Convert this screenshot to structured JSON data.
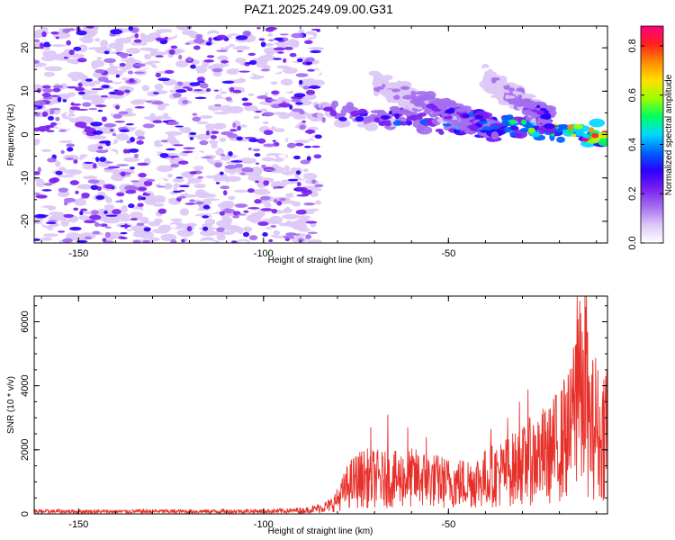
{
  "figure": {
    "title": "PAZ1.2025.249.09.00.G31"
  },
  "chart_data": [
    {
      "type": "heatmap",
      "title": "PAZ1.2025.249.09.00.G31",
      "xlabel": "Height of straight line (km)",
      "ylabel": "Frequency (Hz)",
      "xlim": [
        -162,
        -7
      ],
      "ylim": [
        -25,
        25
      ],
      "x_ticks": [
        -150,
        -100,
        -50
      ],
      "x_tick_labels": [
        "-150",
        "-100",
        "-50"
      ],
      "y_ticks": [
        20,
        10,
        0,
        -10,
        -20
      ],
      "y_tick_labels": [
        "20",
        "10",
        "0",
        "-10",
        "-20"
      ],
      "colorbar": {
        "label": "Normalized spectral amplitude",
        "range": [
          0.0,
          0.88
        ],
        "ticks": [
          0.0,
          0.2,
          0.4,
          0.6,
          0.8
        ],
        "tick_labels": [
          "0.0",
          "0.2",
          "0.4",
          "0.6",
          "0.8"
        ],
        "colors": [
          "#ffffff",
          "#dcc8f6",
          "#a46ef0",
          "#7a1ff0",
          "#2a00ff",
          "#0060ff",
          "#00d8ff",
          "#00ff60",
          "#9cff00",
          "#ffe000",
          "#ff8c00",
          "#ff2020",
          "#ff0080"
        ]
      },
      "features": {
        "noise_region_x": [
          -162,
          -85
        ],
        "noise_level": 0.14,
        "ridges": [
          {
            "x_start": -87,
            "x_end": -7,
            "f_start": 5,
            "f_end": 0,
            "peak_amplitude": 0.85
          },
          {
            "x_start": -70,
            "x_end": -37,
            "f_start": 12,
            "f_end": 1,
            "peak_amplitude": 0.45
          },
          {
            "x_start": -40,
            "x_end": -22,
            "f_start": 13,
            "f_end": 3,
            "peak_amplitude": 0.35
          }
        ]
      },
      "grid": false
    },
    {
      "type": "line",
      "xlabel": "Height of straight line (km)",
      "ylabel": "SNR (10 * v/v)",
      "xlim": [
        -162,
        -7
      ],
      "ylim": [
        0,
        6800
      ],
      "x_ticks": [
        -150,
        -100,
        -50
      ],
      "x_tick_labels": [
        "-150",
        "-100",
        "-50"
      ],
      "y_ticks": [
        0,
        2000,
        4000,
        6000
      ],
      "y_tick_labels": [
        "0",
        "2000",
        "4000",
        "6000"
      ],
      "line_color": "#e8302a",
      "series": [
        {
          "x": [
            -162,
            -150,
            -140,
            -130,
            -120,
            -110,
            -100,
            -92,
            -87,
            -84,
            -82,
            -80,
            -78,
            -77,
            -75,
            -73,
            -70,
            -66,
            -62,
            -58,
            -54,
            -50,
            -46,
            -42,
            -38,
            -34,
            -30,
            -27,
            -25,
            -23,
            -21,
            -19,
            -17,
            -16,
            -15,
            -14,
            -13,
            -12,
            -11,
            -10,
            -9,
            -8,
            -7
          ],
          "values": [
            80,
            80,
            75,
            85,
            80,
            85,
            90,
            100,
            180,
            280,
            350,
            600,
            1000,
            1200,
            1400,
            1500,
            1500,
            1400,
            1500,
            1500,
            1400,
            1300,
            1300,
            1400,
            1600,
            1800,
            2000,
            2300,
            2500,
            2400,
            2800,
            3000,
            3400,
            3900,
            6700,
            4000,
            5800,
            3600,
            3500,
            3900,
            2800,
            3400,
            4100
          ],
          "peaks": [
            {
              "x": -66.4,
              "y": 3100
            },
            {
              "x": -71,
              "y": 2700
            },
            {
              "x": -56,
              "y": 2400
            },
            {
              "x": -61,
              "y": 2700
            },
            {
              "x": -38.5,
              "y": 2650
            },
            {
              "x": -34,
              "y": 3000
            },
            {
              "x": -30.8,
              "y": 3500
            },
            {
              "x": -28.5,
              "y": 3880
            },
            {
              "x": -25,
              "y": 2500
            },
            {
              "x": -22.5,
              "y": 3300
            },
            {
              "x": -18.8,
              "y": 4200
            },
            {
              "x": -16.2,
              "y": 5200
            },
            {
              "x": -15.2,
              "y": 6800
            },
            {
              "x": -14.5,
              "y": 6650
            },
            {
              "x": -12.8,
              "y": 5000
            },
            {
              "x": -11,
              "y": 4800
            },
            {
              "x": -8,
              "y": 4200
            },
            {
              "x": -7.5,
              "y": 4300
            }
          ]
        }
      ],
      "grid": false
    }
  ]
}
